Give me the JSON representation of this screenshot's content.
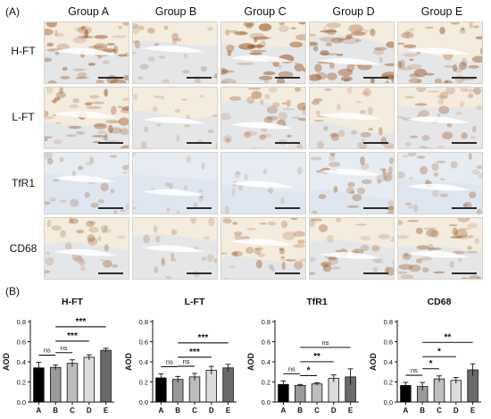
{
  "panel_a_label": "(A)",
  "panel_b_label": "(B)",
  "groups": [
    "Group A",
    "Group B",
    "Group C",
    "Group D",
    "Group E"
  ],
  "rows": [
    "H-FT",
    "L-FT",
    "TfR1",
    "CD68"
  ],
  "colors": {
    "stain": "#9a5a28",
    "tissue": "#f3ecdf",
    "counter": "#d9e2ee",
    "bar_a": "#000000",
    "bar_b": "#9a9a9a",
    "bar_c": "#bdbdbd",
    "bar_d": "#dcdcdc",
    "bar_e": "#6a6a6a"
  },
  "chart_data": [
    {
      "type": "bar",
      "title": "H-FT",
      "ylabel": "AOD",
      "categories": [
        "A",
        "B",
        "C",
        "D",
        "E"
      ],
      "values": [
        0.34,
        0.345,
        0.385,
        0.445,
        0.515
      ],
      "errors": [
        0.055,
        0.025,
        0.035,
        0.025,
        0.02
      ],
      "ylim": [
        0.0,
        0.8
      ],
      "yticks": [
        "0.0",
        "0.2",
        "0.4",
        "0.6",
        "0.8"
      ],
      "comparisons": [
        {
          "from": "A",
          "to": "B",
          "label": "ns"
        },
        {
          "from": "B",
          "to": "C",
          "label": "ns"
        },
        {
          "from": "B",
          "to": "D",
          "label": "***"
        },
        {
          "from": "B",
          "to": "E",
          "label": "***"
        }
      ]
    },
    {
      "type": "bar",
      "title": "L-FT",
      "ylabel": "AOD",
      "categories": [
        "A",
        "B",
        "C",
        "D",
        "E"
      ],
      "values": [
        0.24,
        0.225,
        0.25,
        0.315,
        0.34
      ],
      "errors": [
        0.04,
        0.03,
        0.035,
        0.04,
        0.035
      ],
      "ylim": [
        0.0,
        0.8
      ],
      "yticks": [
        "0.0",
        "0.2",
        "0.4",
        "0.6",
        "0.8"
      ],
      "comparisons": [
        {
          "from": "A",
          "to": "B",
          "label": "ns"
        },
        {
          "from": "B",
          "to": "C",
          "label": "ns"
        },
        {
          "from": "B",
          "to": "D",
          "label": "***"
        },
        {
          "from": "B",
          "to": "E",
          "label": "***"
        }
      ]
    },
    {
      "type": "bar",
      "title": "TfR1",
      "ylabel": "AOD",
      "categories": [
        "A",
        "B",
        "C",
        "D",
        "E"
      ],
      "values": [
        0.175,
        0.165,
        0.18,
        0.235,
        0.25
      ],
      "errors": [
        0.035,
        0.01,
        0.012,
        0.035,
        0.08
      ],
      "ylim": [
        0.0,
        0.8
      ],
      "yticks": [
        "0.0",
        "0.2",
        "0.4",
        "0.6",
        "0.8"
      ],
      "comparisons": [
        {
          "from": "A",
          "to": "B",
          "label": "ns"
        },
        {
          "from": "B",
          "to": "C",
          "label": "*"
        },
        {
          "from": "B",
          "to": "D",
          "label": "**"
        },
        {
          "from": "B",
          "to": "E",
          "label": "ns"
        }
      ]
    },
    {
      "type": "bar",
      "title": "CD68",
      "ylabel": "AOD",
      "categories": [
        "A",
        "B",
        "C",
        "D",
        "E"
      ],
      "values": [
        0.165,
        0.155,
        0.23,
        0.215,
        0.32
      ],
      "errors": [
        0.03,
        0.04,
        0.03,
        0.03,
        0.06
      ],
      "ylim": [
        0.0,
        0.8
      ],
      "yticks": [
        "0.0",
        "0.2",
        "0.4",
        "0.6",
        "0.8"
      ],
      "comparisons": [
        {
          "from": "A",
          "to": "B",
          "label": "ns"
        },
        {
          "from": "B",
          "to": "C",
          "label": "*"
        },
        {
          "from": "B",
          "to": "D",
          "label": "*"
        },
        {
          "from": "B",
          "to": "E",
          "label": "**"
        }
      ]
    }
  ]
}
